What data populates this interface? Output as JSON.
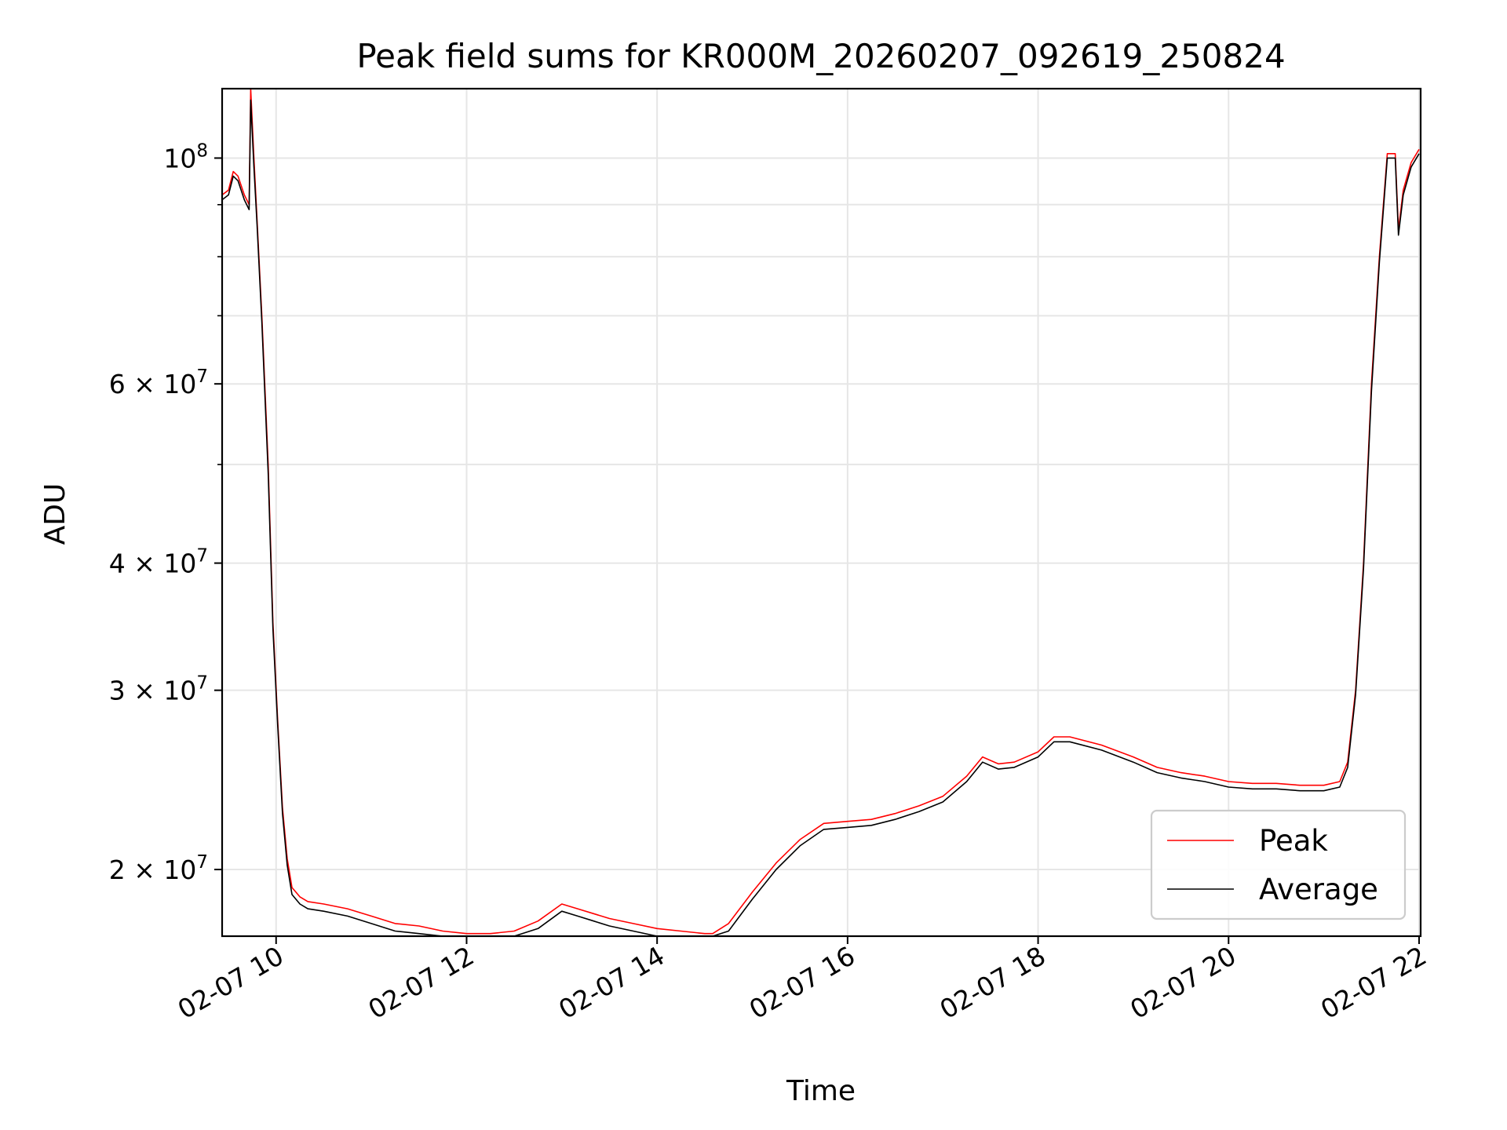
{
  "chart_data": {
    "type": "line",
    "title": "Peak field sums for KR000M_20260207_092619_250824",
    "xlabel": "Time",
    "ylabel": "ADU",
    "yscale": "log",
    "xlim": [
      "02-07 09:26",
      "02-07 22:01"
    ],
    "ylim": [
      17200000,
      117000000
    ],
    "grid": true,
    "legend_position": "lower right",
    "x_ticks": [
      {
        "time": "02-07 10:00",
        "label": "02-07 10"
      },
      {
        "time": "02-07 12:00",
        "label": "02-07 12"
      },
      {
        "time": "02-07 14:00",
        "label": "02-07 14"
      },
      {
        "time": "02-07 16:00",
        "label": "02-07 16"
      },
      {
        "time": "02-07 18:00",
        "label": "02-07 18"
      },
      {
        "time": "02-07 20:00",
        "label": "02-07 20"
      },
      {
        "time": "02-07 22:00",
        "label": "02-07 22"
      }
    ],
    "y_ticks_major": [
      {
        "value": 20000000,
        "base": "2 × 10",
        "exp": "7"
      },
      {
        "value": 30000000,
        "base": "3 × 10",
        "exp": "7"
      },
      {
        "value": 40000000,
        "base": "4 × 10",
        "exp": "7"
      },
      {
        "value": 60000000,
        "base": "6 × 10",
        "exp": "7"
      },
      {
        "value": 100000000,
        "base": "10",
        "exp": "8"
      }
    ],
    "y_ticks_minor": [
      50000000,
      70000000,
      80000000,
      90000000
    ],
    "series": [
      {
        "name": "Peak",
        "color": "#ff0000",
        "x": [
          "02-07 09:26",
          "02-07 09:30",
          "02-07 09:33",
          "02-07 09:36",
          "02-07 09:40",
          "02-07 09:43",
          "02-07 09:44",
          "02-07 09:46",
          "02-07 09:48",
          "02-07 09:51",
          "02-07 09:55",
          "02-07 09:58",
          "02-07 10:01",
          "02-07 10:04",
          "02-07 10:07",
          "02-07 10:10",
          "02-07 10:15",
          "02-07 10:20",
          "02-07 10:30",
          "02-07 10:45",
          "02-07 11:00",
          "02-07 11:15",
          "02-07 11:30",
          "02-07 11:45",
          "02-07 12:00",
          "02-07 12:15",
          "02-07 12:30",
          "02-07 12:45",
          "02-07 13:00",
          "02-07 13:10",
          "02-07 13:20",
          "02-07 13:30",
          "02-07 13:45",
          "02-07 14:00",
          "02-07 14:15",
          "02-07 14:30",
          "02-07 14:35",
          "02-07 14:45",
          "02-07 15:00",
          "02-07 15:15",
          "02-07 15:30",
          "02-07 15:45",
          "02-07 16:00",
          "02-07 16:15",
          "02-07 16:30",
          "02-07 16:45",
          "02-07 17:00",
          "02-07 17:15",
          "02-07 17:25",
          "02-07 17:35",
          "02-07 17:45",
          "02-07 18:00",
          "02-07 18:10",
          "02-07 18:20",
          "02-07 18:40",
          "02-07 19:00",
          "02-07 19:15",
          "02-07 19:30",
          "02-07 19:45",
          "02-07 20:00",
          "02-07 20:15",
          "02-07 20:30",
          "02-07 20:45",
          "02-07 21:00",
          "02-07 21:10",
          "02-07 21:15",
          "02-07 21:20",
          "02-07 21:25",
          "02-07 21:30",
          "02-07 21:35",
          "02-07 21:40",
          "02-07 21:45",
          "02-07 21:47",
          "02-07 21:50",
          "02-07 21:55",
          "02-07 22:00"
        ],
        "values": [
          92000000,
          93000000,
          97000000,
          96000000,
          92000000,
          90000000,
          117000000,
          100000000,
          87000000,
          70000000,
          50000000,
          35000000,
          28000000,
          23000000,
          20500000,
          19200000,
          18800000,
          18600000,
          18500000,
          18300000,
          18000000,
          17700000,
          17600000,
          17400000,
          17300000,
          17300000,
          17400000,
          17800000,
          18500000,
          18300000,
          18100000,
          17900000,
          17700000,
          17500000,
          17400000,
          17300000,
          17300000,
          17700000,
          19000000,
          20300000,
          21400000,
          22200000,
          22300000,
          22400000,
          22700000,
          23100000,
          23600000,
          24700000,
          25800000,
          25400000,
          25500000,
          26100000,
          27000000,
          27000000,
          26500000,
          25800000,
          25200000,
          24900000,
          24700000,
          24400000,
          24300000,
          24300000,
          24200000,
          24200000,
          24400000,
          25500000,
          30000000,
          40000000,
          60000000,
          80000000,
          101000000,
          101000000,
          85000000,
          93000000,
          99000000,
          102000000
        ]
      },
      {
        "name": "Average",
        "color": "#000000",
        "x": [
          "02-07 09:26",
          "02-07 09:30",
          "02-07 09:33",
          "02-07 09:36",
          "02-07 09:40",
          "02-07 09:43",
          "02-07 09:44",
          "02-07 09:46",
          "02-07 09:48",
          "02-07 09:51",
          "02-07 09:55",
          "02-07 09:58",
          "02-07 10:01",
          "02-07 10:04",
          "02-07 10:07",
          "02-07 10:10",
          "02-07 10:15",
          "02-07 10:20",
          "02-07 10:30",
          "02-07 10:45",
          "02-07 11:00",
          "02-07 11:15",
          "02-07 11:30",
          "02-07 11:45",
          "02-07 12:00",
          "02-07 12:15",
          "02-07 12:30",
          "02-07 12:45",
          "02-07 13:00",
          "02-07 13:10",
          "02-07 13:20",
          "02-07 13:30",
          "02-07 13:45",
          "02-07 14:00",
          "02-07 14:15",
          "02-07 14:30",
          "02-07 14:35",
          "02-07 14:45",
          "02-07 15:00",
          "02-07 15:15",
          "02-07 15:30",
          "02-07 15:45",
          "02-07 16:00",
          "02-07 16:15",
          "02-07 16:30",
          "02-07 16:45",
          "02-07 17:00",
          "02-07 17:15",
          "02-07 17:25",
          "02-07 17:35",
          "02-07 17:45",
          "02-07 18:00",
          "02-07 18:10",
          "02-07 18:20",
          "02-07 18:40",
          "02-07 19:00",
          "02-07 19:15",
          "02-07 19:30",
          "02-07 19:45",
          "02-07 20:00",
          "02-07 20:15",
          "02-07 20:30",
          "02-07 20:45",
          "02-07 21:00",
          "02-07 21:10",
          "02-07 21:15",
          "02-07 21:20",
          "02-07 21:25",
          "02-07 21:30",
          "02-07 21:35",
          "02-07 21:40",
          "02-07 21:45",
          "02-07 21:47",
          "02-07 21:50",
          "02-07 21:55",
          "02-07 22:00"
        ],
        "values": [
          91000000,
          92000000,
          96000000,
          95000000,
          91000000,
          89000000,
          114000000,
          98000000,
          86000000,
          69000000,
          49000000,
          34500000,
          27700000,
          22700000,
          20200000,
          18900000,
          18500000,
          18300000,
          18200000,
          18000000,
          17700000,
          17400000,
          17300000,
          17100000,
          17000000,
          17000000,
          17100000,
          17500000,
          18200000,
          18000000,
          17800000,
          17600000,
          17400000,
          17200000,
          17100000,
          17000000,
          17000000,
          17400000,
          18700000,
          20000000,
          21100000,
          21900000,
          22000000,
          22100000,
          22400000,
          22800000,
          23300000,
          24400000,
          25500000,
          25100000,
          25200000,
          25800000,
          26700000,
          26700000,
          26200000,
          25500000,
          24900000,
          24600000,
          24400000,
          24100000,
          24000000,
          24000000,
          23900000,
          23900000,
          24100000,
          25200000,
          29700000,
          39500000,
          59000000,
          79000000,
          100000000,
          100000000,
          84000000,
          92000000,
          98000000,
          101000000
        ]
      }
    ],
    "legend": [
      "Peak",
      "Average"
    ]
  }
}
